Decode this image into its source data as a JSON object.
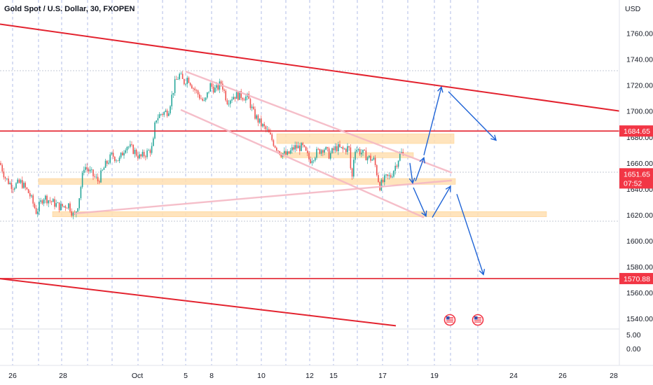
{
  "header": {
    "title": "Gold Spot / U.S. Dollar, 30, FXOPEN",
    "currency": "USD"
  },
  "colors": {
    "candle_up": "#26a69a",
    "candle_down": "#ef5350",
    "trend_red": "#e3232f",
    "channel_pink": "#f5b8c4",
    "zone_fill": "#ffe0b2",
    "arrow_blue": "#1e63d6",
    "grid_dash": "#7b8fd8",
    "badge_red": "#f23645",
    "text": "#131722"
  },
  "chart_data": {
    "type": "candlestick",
    "title": "Gold Spot / U.S. Dollar, 30, FXOPEN",
    "ylabel": "USD",
    "ylim": [
      1515,
      1785
    ],
    "x_ticks": [
      "26",
      "28",
      "Oct",
      "5",
      "8",
      "10",
      "12",
      "15",
      "17",
      "19",
      "24",
      "26",
      "28"
    ],
    "y_ticks": [
      "1760.00",
      "1740.00",
      "1720.00",
      "1700.00",
      "1680.00",
      "1660.00",
      "1640.00",
      "1620.00",
      "1600.00",
      "1580.00",
      "1560.00",
      "1540.00"
    ],
    "lower_scale_ticks": [
      "5.00",
      "0.00"
    ],
    "price_path": [
      [
        0,
        1660
      ],
      [
        8,
        1648
      ],
      [
        18,
        1642
      ],
      [
        30,
        1645
      ],
      [
        42,
        1636
      ],
      [
        52,
        1622
      ],
      [
        62,
        1634
      ],
      [
        74,
        1630
      ],
      [
        86,
        1626
      ],
      [
        98,
        1628
      ],
      [
        106,
        1618
      ],
      [
        112,
        1630
      ],
      [
        120,
        1658
      ],
      [
        130,
        1652
      ],
      [
        140,
        1646
      ],
      [
        150,
        1658
      ],
      [
        160,
        1666
      ],
      [
        170,
        1662
      ],
      [
        180,
        1674
      ],
      [
        190,
        1670
      ],
      [
        200,
        1664
      ],
      [
        210,
        1668
      ],
      [
        218,
        1672
      ],
      [
        222,
        1694
      ],
      [
        230,
        1698
      ],
      [
        240,
        1700
      ],
      [
        250,
        1722
      ],
      [
        256,
        1728
      ],
      [
        262,
        1722
      ],
      [
        268,
        1726
      ],
      [
        276,
        1718
      ],
      [
        284,
        1712
      ],
      [
        292,
        1706
      ],
      [
        300,
        1720
      ],
      [
        308,
        1716
      ],
      [
        316,
        1722
      ],
      [
        324,
        1708
      ],
      [
        334,
        1712
      ],
      [
        344,
        1712
      ],
      [
        354,
        1710
      ],
      [
        362,
        1698
      ],
      [
        372,
        1690
      ],
      [
        382,
        1684
      ],
      [
        392,
        1674
      ],
      [
        400,
        1668
      ],
      [
        410,
        1666
      ],
      [
        420,
        1672
      ],
      [
        432,
        1672
      ],
      [
        442,
        1662
      ],
      [
        452,
        1668
      ],
      [
        462,
        1672
      ],
      [
        470,
        1666
      ],
      [
        480,
        1672
      ],
      [
        490,
        1670
      ],
      [
        498,
        1672
      ],
      [
        502,
        1645
      ],
      [
        506,
        1672
      ],
      [
        516,
        1668
      ],
      [
        526,
        1664
      ],
      [
        534,
        1662
      ],
      [
        542,
        1642
      ],
      [
        550,
        1648
      ],
      [
        558,
        1650
      ],
      [
        566,
        1660
      ],
      [
        572,
        1668
      ],
      [
        576,
        1666
      ]
    ],
    "lines": [
      {
        "kind": "trend-upper",
        "points": [
          [
            0,
            1767
          ],
          [
            885,
            1700
          ]
        ]
      },
      {
        "kind": "trend-lower",
        "points": [
          [
            0,
            1570.8
          ],
          [
            565,
            1534.5
          ]
        ]
      },
      {
        "kind": "horizontal-upper",
        "price": 1684.65
      },
      {
        "kind": "horizontal-lower",
        "price": 1570.88
      },
      {
        "kind": "channel-top",
        "points": [
          [
            265,
            1730.5
          ],
          [
            645,
            1652.5
          ]
        ]
      },
      {
        "kind": "channel-bottom",
        "points": [
          [
            258,
            1701
          ],
          [
            605,
            1618
          ]
        ]
      },
      {
        "kind": "support-diagonal",
        "points": [
          [
            105,
            1621
          ],
          [
            645,
            1646.5
          ]
        ]
      }
    ],
    "zones": [
      {
        "x1": 395,
        "x2": 648,
        "y1": 1682.5,
        "y2": 1675
      },
      {
        "x1": 400,
        "x2": 590,
        "y1": 1668,
        "y2": 1664
      },
      {
        "x1": 55,
        "x2": 650,
        "y1": 1648,
        "y2": 1643.5
      },
      {
        "x1": 75,
        "x2": 780,
        "y1": 1622.5,
        "y2": 1618.5
      }
    ],
    "projection_arrows": [
      {
        "points": [
          [
            585,
            1660
          ],
          [
            589,
            1644.5
          ]
        ],
        "head": true
      },
      {
        "points": [
          [
            593,
            1646
          ],
          [
            605,
            1664
          ]
        ],
        "head": true
      },
      {
        "points": [
          [
            605,
            1666
          ],
          [
            630,
            1718.5
          ]
        ],
        "head": true
      },
      {
        "points": [
          [
            640,
            1715
          ],
          [
            708,
            1677.5
          ]
        ],
        "head": true
      },
      {
        "points": [
          [
            590,
            1641
          ],
          [
            608,
            1619
          ]
        ],
        "head": true
      },
      {
        "points": [
          [
            617,
            1618
          ],
          [
            643,
            1642
          ]
        ],
        "head": true
      },
      {
        "points": [
          [
            652,
            1636
          ],
          [
            690,
            1574
          ]
        ],
        "head": true
      }
    ],
    "price_labels": [
      {
        "value": "1684.65",
        "price": 1684.65
      },
      {
        "value": "1651.65",
        "price": 1651.65
      },
      {
        "value": "07:52",
        "price": 1644.6
      },
      {
        "value": "1570.88",
        "price": 1570.88
      }
    ],
    "current_price": 1651.65,
    "countdown": "07:52",
    "event_markers": [
      {
        "icon": "us-flag-icon",
        "x": 642
      },
      {
        "icon": "us-flag-icon",
        "x": 682
      }
    ],
    "grid": "dashed vertical"
  }
}
